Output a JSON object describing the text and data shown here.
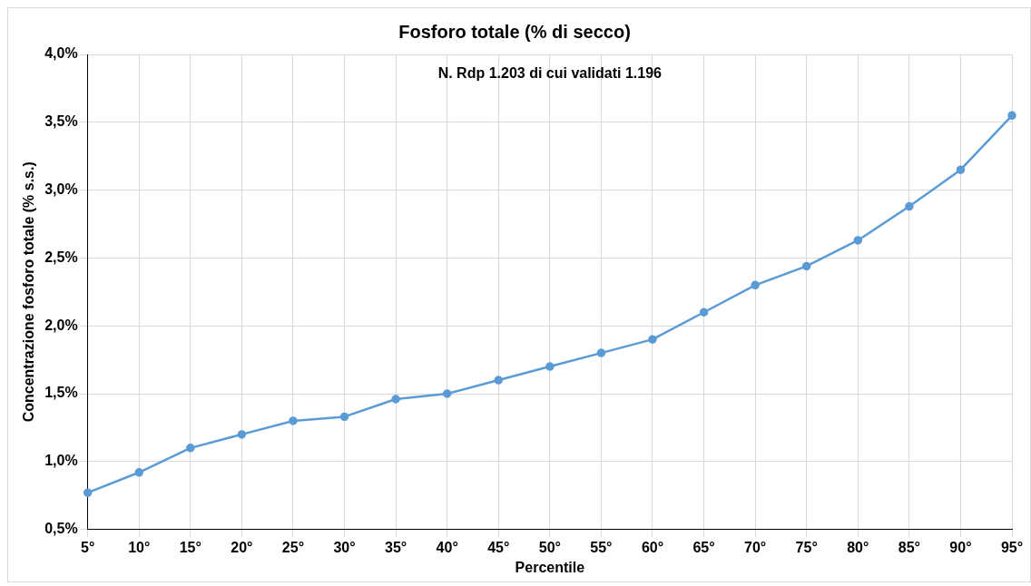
{
  "chart_data": {
    "type": "line",
    "title": "Fosforo totale (% di secco)",
    "xlabel": "Percentile",
    "ylabel": "Concentrazione fosforo totale (% s.s.)",
    "annotations": [
      "N. Rdp 1.203 di cui validati 1.196"
    ],
    "categories": [
      "5°",
      "10°",
      "15°",
      "20°",
      "25°",
      "30°",
      "35°",
      "40°",
      "45°",
      "50°",
      "55°",
      "60°",
      "65°",
      "70°",
      "75°",
      "80°",
      "85°",
      "90°",
      "95°"
    ],
    "series": [
      {
        "color": "#5b9bd5",
        "values": [
          0.77,
          0.92,
          1.1,
          1.2,
          1.3,
          1.33,
          1.46,
          1.5,
          1.6,
          1.7,
          1.8,
          1.9,
          2.1,
          2.3,
          2.44,
          2.63,
          2.88,
          3.15,
          3.55
        ]
      }
    ],
    "ylim": [
      0.5,
      4
    ],
    "yticks": [
      {
        "value": 0.5,
        "label": "0,5%"
      },
      {
        "value": 1,
        "label": "1,0%"
      },
      {
        "value": 1.5,
        "label": "1,5%"
      },
      {
        "value": 2,
        "label": "2,0%"
      },
      {
        "value": 2.5,
        "label": "2,5%"
      },
      {
        "value": 3,
        "label": "3,0%"
      },
      {
        "value": 3.5,
        "label": "3,5%"
      },
      {
        "value": 4,
        "label": "4,0%"
      }
    ],
    "grid": true,
    "legend": false,
    "marker": "circle",
    "line_style": "solid"
  }
}
